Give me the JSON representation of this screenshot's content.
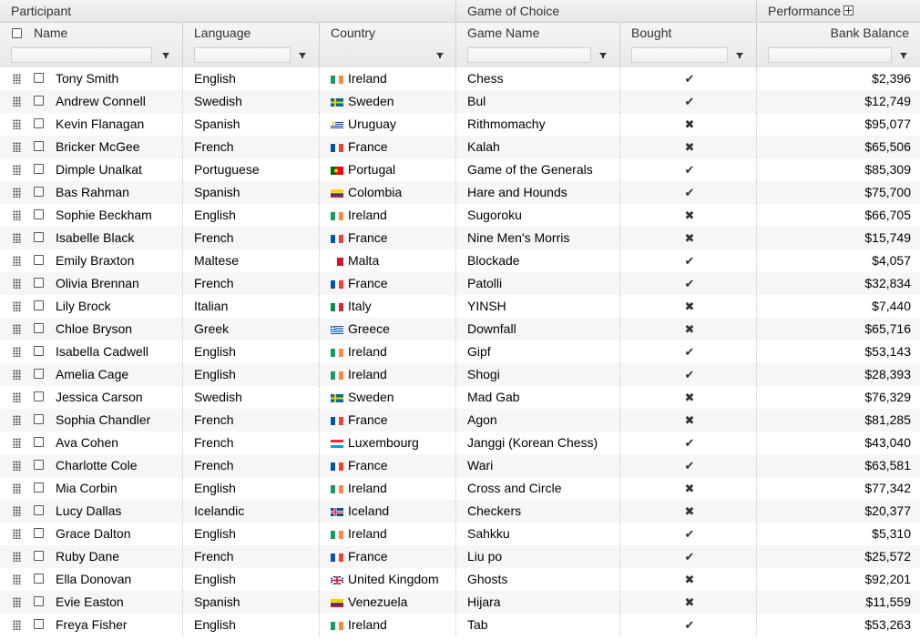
{
  "groups": {
    "participant": "Participant",
    "game": "Game of Choice",
    "performance": "Performance"
  },
  "columns": {
    "name": "Name",
    "language": "Language",
    "country": "Country",
    "game_name": "Game Name",
    "bought": "Bought",
    "bank_balance": "Bank Balance"
  },
  "filters": {
    "name": "",
    "language": "",
    "country": "",
    "game_name": "",
    "bought": "",
    "bank_balance": ""
  },
  "rows": [
    {
      "name": "Tony Smith",
      "language": "English",
      "country": "Ireland",
      "game": "Chess",
      "bought": true,
      "balance": "$2,396"
    },
    {
      "name": "Andrew Connell",
      "language": "Swedish",
      "country": "Sweden",
      "game": "Bul",
      "bought": true,
      "balance": "$12,749"
    },
    {
      "name": "Kevin Flanagan",
      "language": "Spanish",
      "country": "Uruguay",
      "game": "Rithmomachy",
      "bought": false,
      "balance": "$95,077"
    },
    {
      "name": "Bricker McGee",
      "language": "French",
      "country": "France",
      "game": "Kalah",
      "bought": false,
      "balance": "$65,506"
    },
    {
      "name": "Dimple Unalkat",
      "language": "Portuguese",
      "country": "Portugal",
      "game": "Game of the Generals",
      "bought": true,
      "balance": "$85,309"
    },
    {
      "name": "Bas Rahman",
      "language": "Spanish",
      "country": "Colombia",
      "game": "Hare and Hounds",
      "bought": true,
      "balance": "$75,700"
    },
    {
      "name": "Sophie Beckham",
      "language": "English",
      "country": "Ireland",
      "game": "Sugoroku",
      "bought": false,
      "balance": "$66,705"
    },
    {
      "name": "Isabelle Black",
      "language": "French",
      "country": "France",
      "game": "Nine Men's Morris",
      "bought": false,
      "balance": "$15,749"
    },
    {
      "name": "Emily Braxton",
      "language": "Maltese",
      "country": "Malta",
      "game": "Blockade",
      "bought": true,
      "balance": "$4,057"
    },
    {
      "name": "Olivia Brennan",
      "language": "French",
      "country": "France",
      "game": "Patolli",
      "bought": true,
      "balance": "$32,834"
    },
    {
      "name": "Lily Brock",
      "language": "Italian",
      "country": "Italy",
      "game": "YINSH",
      "bought": false,
      "balance": "$7,440"
    },
    {
      "name": "Chloe Bryson",
      "language": "Greek",
      "country": "Greece",
      "game": "Downfall",
      "bought": false,
      "balance": "$65,716"
    },
    {
      "name": "Isabella Cadwell",
      "language": "English",
      "country": "Ireland",
      "game": "Gipf",
      "bought": true,
      "balance": "$53,143"
    },
    {
      "name": "Amelia Cage",
      "language": "English",
      "country": "Ireland",
      "game": "Shogi",
      "bought": true,
      "balance": "$28,393"
    },
    {
      "name": "Jessica Carson",
      "language": "Swedish",
      "country": "Sweden",
      "game": "Mad Gab",
      "bought": false,
      "balance": "$76,329"
    },
    {
      "name": "Sophia Chandler",
      "language": "French",
      "country": "France",
      "game": "Agon",
      "bought": false,
      "balance": "$81,285"
    },
    {
      "name": "Ava Cohen",
      "language": "French",
      "country": "Luxembourg",
      "game": "Janggi (Korean Chess)",
      "bought": true,
      "balance": "$43,040"
    },
    {
      "name": "Charlotte Cole",
      "language": "French",
      "country": "France",
      "game": "Wari",
      "bought": true,
      "balance": "$63,581"
    },
    {
      "name": "Mia Corbin",
      "language": "English",
      "country": "Ireland",
      "game": "Cross and Circle",
      "bought": false,
      "balance": "$77,342"
    },
    {
      "name": "Lucy Dallas",
      "language": "Icelandic",
      "country": "Iceland",
      "game": "Checkers",
      "bought": false,
      "balance": "$20,377"
    },
    {
      "name": "Grace Dalton",
      "language": "English",
      "country": "Ireland",
      "game": "Sahkku",
      "bought": true,
      "balance": "$5,310"
    },
    {
      "name": "Ruby Dane",
      "language": "French",
      "country": "France",
      "game": "Liu po",
      "bought": true,
      "balance": "$25,572"
    },
    {
      "name": "Ella Donovan",
      "language": "English",
      "country": "United Kingdom",
      "game": "Ghosts",
      "bought": false,
      "balance": "$92,201"
    },
    {
      "name": "Evie Easton",
      "language": "Spanish",
      "country": "Venezuela",
      "game": "Hijara",
      "bought": false,
      "balance": "$11,559"
    },
    {
      "name": "Freya Fisher",
      "language": "English",
      "country": "Ireland",
      "game": "Tab",
      "bought": true,
      "balance": "$53,263"
    }
  ],
  "icons": {
    "bought_true": "✔",
    "bought_false": "✖"
  },
  "flag_colors": {
    "Ireland": [
      "#169b62",
      "#ffffff",
      "#ff883e"
    ],
    "Sweden": [
      "#006aa7",
      "#fecc00"
    ],
    "Uruguay": [
      "#ffffff",
      "#0038a8",
      "#fcd116"
    ],
    "France": [
      "#0055a4",
      "#ffffff",
      "#ef4135"
    ],
    "Portugal": [
      "#006600",
      "#ff0000",
      "#ffcc00"
    ],
    "Colombia": [
      "#fcd116",
      "#003893",
      "#ce1126"
    ],
    "Malta": [
      "#ffffff",
      "#cf142b"
    ],
    "Italy": [
      "#009246",
      "#ffffff",
      "#ce2b37"
    ],
    "Greece": [
      "#0d5eaf",
      "#ffffff"
    ],
    "Luxembourg": [
      "#ed2939",
      "#ffffff",
      "#00a1de"
    ],
    "Iceland": [
      "#02529c",
      "#ffffff",
      "#dc1e35"
    ],
    "United Kingdom": [
      "#012169",
      "#ffffff",
      "#c8102e"
    ],
    "Venezuela": [
      "#ffcc00",
      "#00247d",
      "#cf142b"
    ]
  }
}
